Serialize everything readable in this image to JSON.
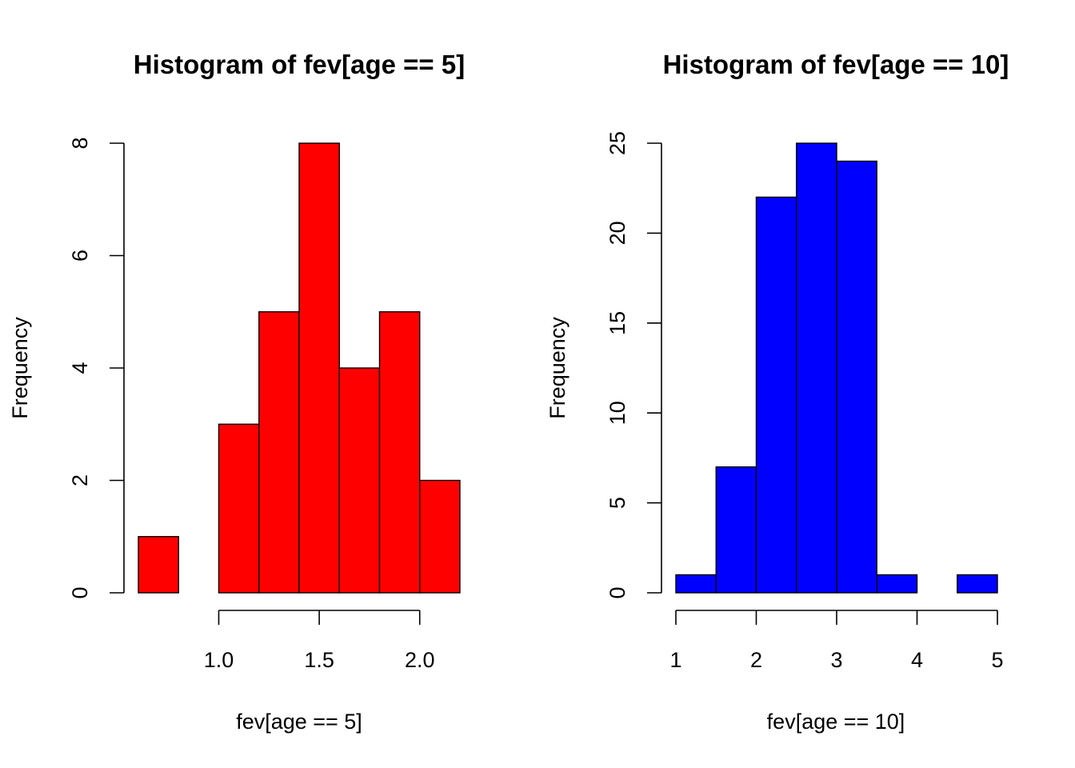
{
  "chart_data": [
    {
      "type": "bar",
      "subtype": "histogram",
      "title": "Histogram of fev[age == 5]",
      "xlabel": "fev[age == 5]",
      "ylabel": "Frequency",
      "bins": [
        [
          0.6,
          0.8
        ],
        [
          0.8,
          1.0
        ],
        [
          1.0,
          1.2
        ],
        [
          1.2,
          1.4
        ],
        [
          1.4,
          1.6
        ],
        [
          1.6,
          1.8
        ],
        [
          1.8,
          2.0
        ],
        [
          2.0,
          2.2
        ]
      ],
      "values": [
        1,
        0,
        3,
        5,
        8,
        4,
        5,
        2
      ],
      "xlim": [
        0.6,
        2.2
      ],
      "ylim": [
        0,
        8
      ],
      "xticks": [
        1.0,
        1.5,
        2.0
      ],
      "xtick_labels": [
        "1.0",
        "1.5",
        "2.0"
      ],
      "yticks": [
        0,
        2,
        4,
        6,
        8
      ],
      "ytick_labels": [
        "0",
        "2",
        "4",
        "6",
        "8"
      ],
      "color": "#ff0000",
      "grid": false
    },
    {
      "type": "bar",
      "subtype": "histogram",
      "title": "Histogram of fev[age == 10]",
      "xlabel": "fev[age == 10]",
      "ylabel": "Frequency",
      "bins": [
        [
          1.0,
          1.5
        ],
        [
          1.5,
          2.0
        ],
        [
          2.0,
          2.5
        ],
        [
          2.5,
          3.0
        ],
        [
          3.0,
          3.5
        ],
        [
          3.5,
          4.0
        ],
        [
          4.0,
          4.5
        ],
        [
          4.5,
          5.0
        ]
      ],
      "values": [
        1,
        7,
        22,
        25,
        24,
        1,
        0,
        1
      ],
      "xlim": [
        1,
        5
      ],
      "ylim": [
        0,
        25
      ],
      "xticks": [
        1,
        2,
        3,
        4,
        5
      ],
      "xtick_labels": [
        "1",
        "2",
        "3",
        "4",
        "5"
      ],
      "yticks": [
        0,
        5,
        10,
        15,
        20,
        25
      ],
      "ytick_labels": [
        "0",
        "5",
        "10",
        "15",
        "20",
        "25"
      ],
      "color": "#0000ff",
      "grid": false
    }
  ]
}
